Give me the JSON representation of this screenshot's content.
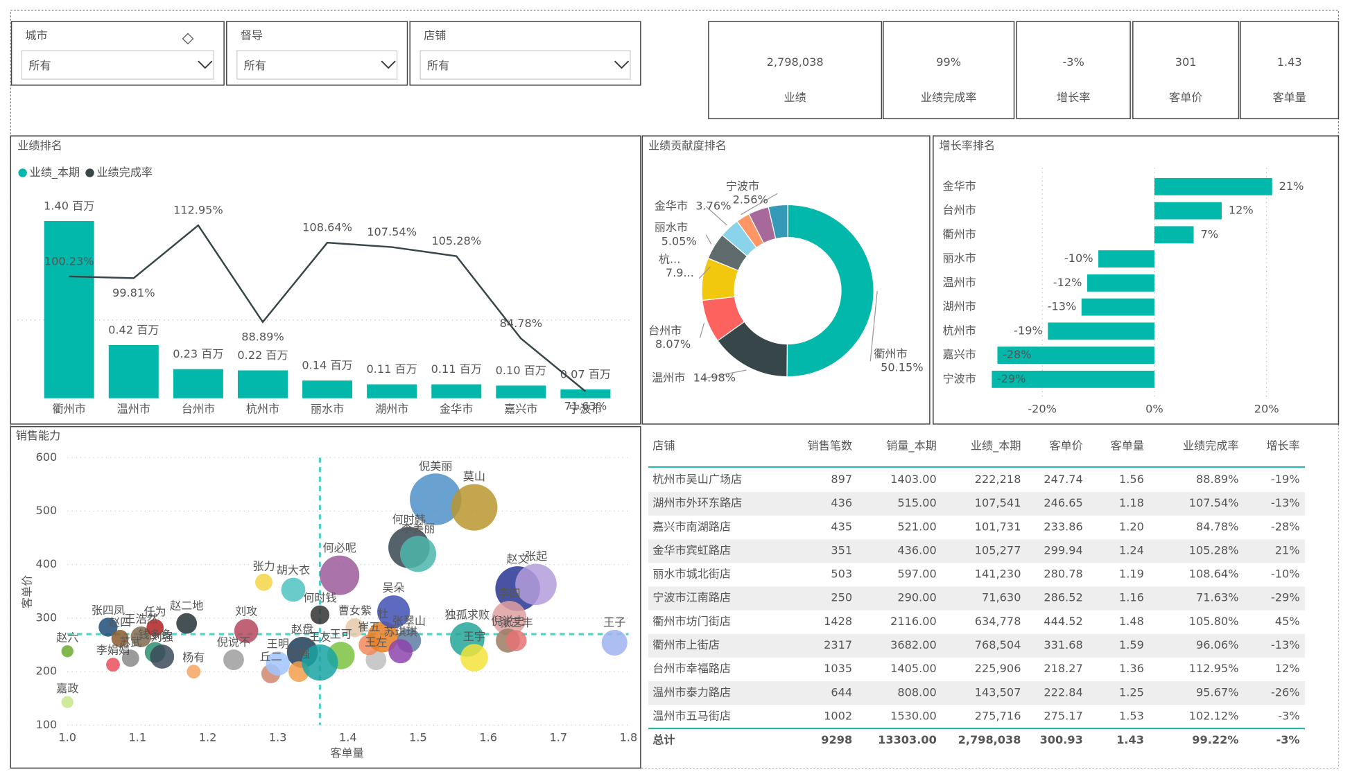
{
  "filters": [
    {
      "label": "城市",
      "value": "所有"
    },
    {
      "label": "督导",
      "value": "所有"
    },
    {
      "label": "店铺",
      "value": "所有"
    }
  ],
  "kpis": [
    {
      "value": "2,798,038",
      "label": "业绩"
    },
    {
      "value": "99%",
      "label": "业绩完成率"
    },
    {
      "value": "-3%",
      "label": "增长率"
    },
    {
      "value": "301",
      "label": "客单价"
    },
    {
      "value": "1.43",
      "label": "客单量"
    }
  ],
  "chart_data": [
    {
      "type": "combo",
      "title": "业绩排名",
      "categories": [
        "衢州市",
        "温州市",
        "台州市",
        "杭州市",
        "丽水市",
        "湖州市",
        "金华市",
        "嘉兴市",
        "宁波市"
      ],
      "series": [
        {
          "name": "业绩_本期",
          "type": "bar",
          "color": "#01b8aa",
          "values": [
            1.4,
            0.42,
            0.23,
            0.22,
            0.14,
            0.11,
            0.11,
            0.1,
            0.07
          ],
          "value_labels": [
            "1.40 百万",
            "0.42 百万",
            "0.23 百万",
            "0.22 百万",
            "0.14 百万",
            "0.11 百万",
            "0.11 百万",
            "0.10 百万",
            "0.07 百万"
          ]
        },
        {
          "name": "业绩完成率",
          "type": "line",
          "color": "#374649",
          "values": [
            100.23,
            99.81,
            112.95,
            88.89,
            108.64,
            107.54,
            105.28,
            84.78,
            71.63
          ],
          "value_labels": [
            "100.23%",
            "99.81%",
            "112.95%",
            "88.89%",
            "108.64%",
            "107.54%",
            "105.28%",
            "84.78%",
            "71.63%"
          ]
        }
      ]
    },
    {
      "type": "donut",
      "title": "业绩贡献度排名",
      "categories": [
        "衢州市",
        "温州市",
        "台州市",
        "杭...",
        "丽水市",
        "金华市",
        "宁波市",
        null,
        null
      ],
      "values": [
        50.15,
        14.98,
        8.07,
        7.97,
        5.05,
        3.76,
        2.56,
        3.84,
        3.62
      ],
      "value_labels": [
        "50.15%",
        "14.98%",
        "8.07%",
        "7.9...",
        "5.05%",
        "3.76%",
        "2.56%",
        null,
        null
      ],
      "colors": [
        "#01b8aa",
        "#374649",
        "#fd625e",
        "#f2c80f",
        "#5f6b6d",
        "#8ad4eb",
        "#fe9666",
        "#a66999",
        "#3599b8"
      ]
    },
    {
      "type": "hbar",
      "title": "增长率排名",
      "categories": [
        "金华市",
        "台州市",
        "衢州市",
        "丽水市",
        "温州市",
        "湖州市",
        "杭州市",
        "嘉兴市",
        "宁波市"
      ],
      "values": [
        21,
        12,
        7,
        -10,
        -12,
        -13,
        -19,
        -28,
        -29
      ],
      "value_labels": [
        "21%",
        "12%",
        "7%",
        "-10%",
        "-12%",
        "-13%",
        "-19%",
        "-28%",
        "-29%"
      ],
      "color": "#01b8aa",
      "xlim": [
        -37,
        29
      ],
      "xticks": [
        {
          "value": -20,
          "label": "-20%"
        },
        {
          "value": 0,
          "label": "0%"
        },
        {
          "value": 20,
          "label": "20%"
        }
      ],
      "grid": true
    },
    {
      "type": "scatter",
      "title": "销售能力",
      "xlabel": "客单量",
      "ylabel": "客单价",
      "xlim": [
        1.0,
        1.8
      ],
      "ylim": [
        100,
        600
      ],
      "xticks": [
        {
          "value": 1,
          "label": "1.0"
        },
        1.1,
        1.2,
        1.3,
        1.4,
        1.5,
        1.6,
        1.7,
        1.8
      ],
      "yticks": [
        100,
        200,
        300,
        400,
        500,
        600
      ],
      "grid": true,
      "reference_lines": {
        "x": 1.36,
        "y": 270,
        "color": "#4fd1c5"
      },
      "points": [
        {
          "name": "嘉政",
          "x": 1.0,
          "y": 143,
          "size": 49,
          "color": "#c5e88a"
        },
        {
          "name": "赵六",
          "x": 1.0,
          "y": 238,
          "size": 49,
          "color": "#6bab2f"
        },
        {
          "name": "李娟娟",
          "x": 1.065,
          "y": 213,
          "size": 64,
          "color": "#e8505b"
        },
        {
          "name": "苏武",
          "x": 1.09,
          "y": 225,
          "size": 100,
          "color": "#8a8a8a"
        },
        {
          "name": "张四凤",
          "x": 1.058,
          "y": 283,
          "size": 121,
          "color": "#1f4e79"
        },
        {
          "name": "赵四",
          "x": 1.075,
          "y": 262,
          "size": 100,
          "color": "#8c5a2b"
        },
        {
          "name": "王浩然",
          "x": 1.105,
          "y": 265,
          "size": 144,
          "color": "#7f6a4f"
        },
        {
          "name": "任为",
          "x": 1.125,
          "y": 282,
          "size": 100,
          "color": "#b22222"
        },
        {
          "name": "钱多多",
          "x": 1.125,
          "y": 236,
          "size": 144,
          "color": "#2f8f6f"
        },
        {
          "name": "刘强",
          "x": 1.135,
          "y": 228,
          "size": 196,
          "color": "#3b4a5a"
        },
        {
          "name": "赵二地",
          "x": 1.17,
          "y": 290,
          "size": 144,
          "color": "#263238"
        },
        {
          "name": "杨有",
          "x": 1.18,
          "y": 200,
          "size": 64,
          "color": "#f4a460"
        },
        {
          "name": "倪说不",
          "x": 1.237,
          "y": 222,
          "size": 144,
          "color": "#9e9e9e"
        },
        {
          "name": "刘攻",
          "x": 1.255,
          "y": 276,
          "size": 196,
          "color": "#b5485e"
        },
        {
          "name": "张力",
          "x": 1.28,
          "y": 367,
          "size": 100,
          "color": "#f5d547"
        },
        {
          "name": "丘二",
          "x": 1.29,
          "y": 196,
          "size": 121,
          "color": "#d08770"
        },
        {
          "name": "王明",
          "x": 1.3,
          "y": 215,
          "size": 196,
          "color": "#a0c4ff"
        },
        {
          "name": "胡大衣",
          "x": 1.322,
          "y": 353,
          "size": 196,
          "color": "#4fc3c1"
        },
        {
          "name": "何时钱",
          "x": 1.36,
          "y": 306,
          "size": 121,
          "color": "#333333"
        },
        {
          "name": "赵盘",
          "x": 1.335,
          "y": 236,
          "size": 324,
          "color": "#1e3d59"
        },
        {
          "name": "王强",
          "x": 1.33,
          "y": 200,
          "size": 144,
          "color": "#f29e4c"
        },
        {
          "name": "何必呢",
          "x": 1.388,
          "y": 380,
          "size": 529,
          "color": "#9b5c9b"
        },
        {
          "name": "曹女紫",
          "x": 1.41,
          "y": 282,
          "size": 121,
          "color": "#e6c9a8"
        },
        {
          "name": "王可",
          "x": 1.39,
          "y": 230,
          "size": 256,
          "color": "#7cc242"
        },
        {
          "name": "王友",
          "x": 1.36,
          "y": 217,
          "size": 441,
          "color": "#1aa3a3"
        },
        {
          "name": "王左",
          "x": 1.44,
          "y": 222,
          "size": 144,
          "color": "#c0c0c0"
        },
        {
          "name": "崔五",
          "x": 1.43,
          "y": 250,
          "size": 144,
          "color": "#f08a5d"
        },
        {
          "name": "杜",
          "x": 1.45,
          "y": 265,
          "size": 324,
          "color": "#e67e22"
        },
        {
          "name": "吴朵",
          "x": 1.465,
          "y": 312,
          "size": 361,
          "color": "#3f51b5"
        },
        {
          "name": "张翠山",
          "x": 1.487,
          "y": 258,
          "size": 196,
          "color": "#5e7ca3"
        },
        {
          "name": "苏琪琪",
          "x": 1.475,
          "y": 238,
          "size": 196,
          "color": "#8e44ad"
        },
        {
          "name": "倪美丽",
          "x": 1.525,
          "y": 522,
          "size": 900,
          "color": "#4f90c8"
        },
        {
          "name": "莫山",
          "x": 1.58,
          "y": 507,
          "size": 729,
          "color": "#b8962e"
        },
        {
          "name": "何时韩",
          "x": 1.487,
          "y": 432,
          "size": 576,
          "color": "#37474f"
        },
        {
          "name": "李美丽",
          "x": 1.5,
          "y": 420,
          "size": 441,
          "color": "#4db6ac"
        },
        {
          "name": "赵文",
          "x": 1.642,
          "y": 355,
          "size": 676,
          "color": "#283593"
        },
        {
          "name": "张起",
          "x": 1.668,
          "y": 363,
          "size": 576,
          "color": "#b39ddb"
        },
        {
          "name": "李四",
          "x": 1.63,
          "y": 300,
          "size": 400,
          "color": "#e0a0a0"
        },
        {
          "name": "独孤求败",
          "x": 1.57,
          "y": 260,
          "size": 400,
          "color": "#26a69a"
        },
        {
          "name": "王宇",
          "x": 1.58,
          "y": 226,
          "size": 256,
          "color": "#f3e33a"
        },
        {
          "name": "倪说史",
          "x": 1.628,
          "y": 258,
          "size": 196,
          "color": "#9c7b63"
        },
        {
          "name": "张三丰",
          "x": 1.64,
          "y": 258,
          "size": 144,
          "color": "#e57373"
        },
        {
          "name": "王子",
          "x": 1.78,
          "y": 254,
          "size": 225,
          "color": "#9fb4f0"
        }
      ]
    }
  ],
  "table": {
    "columns": [
      "店铺",
      "销售笔数",
      "销量_本期",
      "业绩_本期",
      "客单价",
      "客单量",
      "业绩完成率",
      "增长率"
    ],
    "rows": [
      [
        "杭州市吴山广场店",
        "897",
        "1403.00",
        "222,218",
        "247.74",
        "1.56",
        "88.89%",
        "-19%"
      ],
      [
        "湖州市外环东路店",
        "436",
        "515.00",
        "107,541",
        "246.65",
        "1.18",
        "107.54%",
        "-13%"
      ],
      [
        "嘉兴市南湖路店",
        "435",
        "521.00",
        "101,731",
        "233.86",
        "1.20",
        "84.78%",
        "-28%"
      ],
      [
        "金华市宾虹路店",
        "351",
        "436.00",
        "105,277",
        "299.94",
        "1.24",
        "105.28%",
        "21%"
      ],
      [
        "丽水市城北街店",
        "503",
        "597.00",
        "141,230",
        "280.78",
        "1.19",
        "108.64%",
        "-10%"
      ],
      [
        "宁波市江南路店",
        "250",
        "290.00",
        "71,630",
        "286.52",
        "1.16",
        "71.63%",
        "-29%"
      ],
      [
        "衢州市坊门街店",
        "1428",
        "2116.00",
        "634,778",
        "444.52",
        "1.48",
        "105.80%",
        "45%"
      ],
      [
        "衢州市上街店",
        "2317",
        "3682.00",
        "768,504",
        "331.68",
        "1.59",
        "96.06%",
        "-13%"
      ],
      [
        "台州市幸福路店",
        "1035",
        "1405.00",
        "225,906",
        "218.27",
        "1.36",
        "112.95%",
        "12%"
      ],
      [
        "温州市泰力路店",
        "644",
        "808.00",
        "143,507",
        "222.84",
        "1.25",
        "95.67%",
        "-26%"
      ],
      [
        "温州市五马街店",
        "1002",
        "1530.00",
        "275,716",
        "275.17",
        "1.53",
        "102.12%",
        "-3%"
      ]
    ],
    "total": [
      "总计",
      "9298",
      "13303.00",
      "2,798,038",
      "300.93",
      "1.43",
      "99.22%",
      "-3%"
    ]
  }
}
